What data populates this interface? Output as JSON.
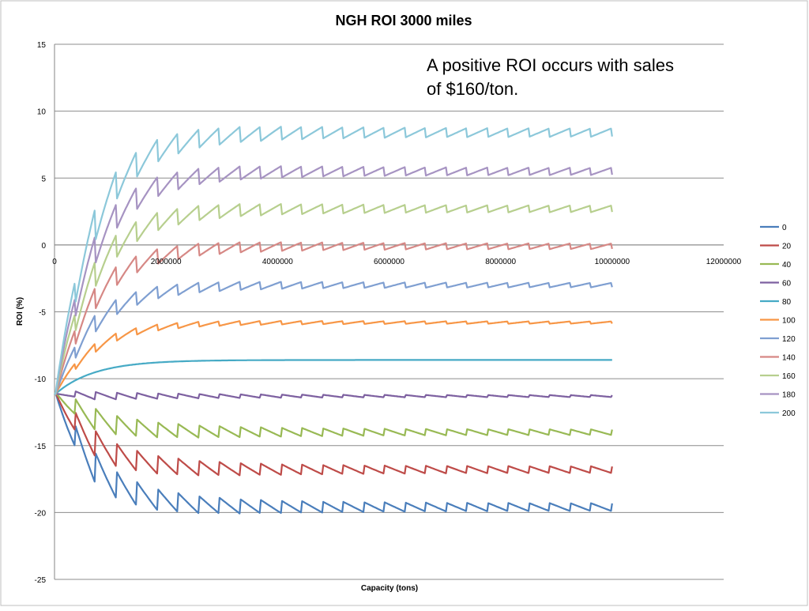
{
  "chart_data": {
    "type": "line",
    "title": "NGH ROI 3000 miles",
    "xlabel": "Capacity (tons)",
    "ylabel": "ROI (%)",
    "xlim": [
      0,
      12000000
    ],
    "ylim": [
      -25,
      15
    ],
    "x_ticks": [
      0,
      2000000,
      4000000,
      6000000,
      8000000,
      10000000,
      12000000
    ],
    "x_tick_labels": [
      "0",
      "2000000",
      "4000000",
      "6000000",
      "8000000",
      "10000000",
      "12000000"
    ],
    "y_ticks": [
      15,
      10,
      5,
      0,
      -5,
      -10,
      -15,
      -20,
      -25
    ],
    "y_tick_labels": [
      "15",
      "10",
      "5",
      "0",
      "-5",
      "-10",
      "-15",
      "-20",
      "-25"
    ],
    "grid": true,
    "legend_position": "right",
    "annotation": [
      "A positive ROI occurs with sales",
      "of $160/ton."
    ],
    "series": [
      {
        "name": "0",
        "color": "#4a7ebb",
        "start": -11.2,
        "limit": -19.6,
        "amp": 1.4,
        "kind": "saw"
      },
      {
        "name": "20",
        "color": "#be4b48",
        "start": -11.2,
        "limit": -16.8,
        "amp": 1.2,
        "kind": "saw"
      },
      {
        "name": "40",
        "color": "#98b954",
        "start": -11.2,
        "limit": -14.0,
        "amp": 1.0,
        "kind": "saw"
      },
      {
        "name": "60",
        "color": "#7d60a0",
        "start": -11.2,
        "limit": -11.3,
        "amp": 0.35,
        "kind": "saw"
      },
      {
        "name": "80",
        "color": "#46aac5",
        "start": -11.2,
        "limit": -8.6,
        "amp": 0.1,
        "kind": "smooth"
      },
      {
        "name": "100",
        "color": "#f79646",
        "start": -11.2,
        "limit": -5.8,
        "amp": 0.4,
        "kind": "saw"
      },
      {
        "name": "120",
        "color": "#7f9fd1",
        "start": -11.2,
        "limit": -3.0,
        "amp": 0.8,
        "kind": "saw"
      },
      {
        "name": "140",
        "color": "#d68885",
        "start": -11.2,
        "limit": -0.1,
        "amp": 1.0,
        "kind": "saw"
      },
      {
        "name": "160",
        "color": "#b7cf8e",
        "start": -11.2,
        "limit": 2.7,
        "amp": 1.2,
        "kind": "saw"
      },
      {
        "name": "180",
        "color": "#a693c2",
        "start": -11.2,
        "limit": 5.5,
        "amp": 1.3,
        "kind": "saw"
      },
      {
        "name": "200",
        "color": "#8cc8da",
        "start": -11.2,
        "limit": 8.4,
        "amp": 1.5,
        "kind": "saw"
      }
    ]
  }
}
